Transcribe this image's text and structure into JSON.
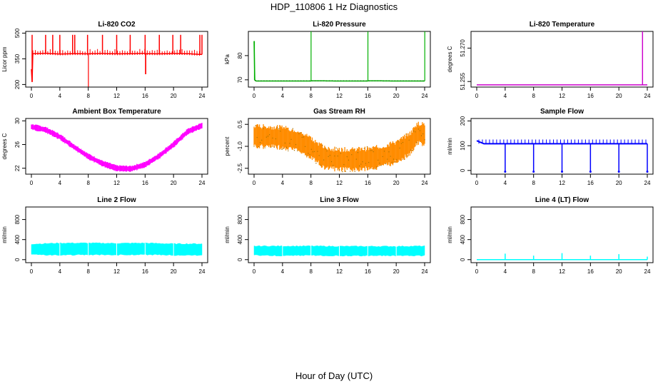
{
  "figure": {
    "title": "HDP_110806  1 Hz Diagnostics",
    "xlabel": "Hour of Day (UTC)"
  },
  "chart_data": [
    {
      "type": "line",
      "title": "Li-820 CO2",
      "ylabel": "Licor ppm",
      "color": "#ff0000",
      "xlim": [
        0,
        24
      ],
      "ylim": [
        185,
        510
      ],
      "yticks": [
        "200",
        "350",
        "500"
      ],
      "ytick_values": [
        200,
        350,
        500
      ],
      "xticks": [
        "0",
        "4",
        "8",
        "12",
        "16",
        "20",
        "24"
      ],
      "series": [
        {
          "name": "CO2",
          "x": [
            0,
            0.1,
            0.2,
            2,
            4,
            6,
            8,
            8.02,
            8.1,
            10,
            12,
            14,
            16,
            16.05,
            16.1,
            18,
            20,
            22,
            24
          ],
          "y": [
            290,
            215,
            380,
            382,
            378,
            380,
            379,
            187,
            380,
            381,
            379,
            380,
            382,
            260,
            380,
            379,
            381,
            380,
            375
          ]
        }
      ],
      "spikes_x": [
        0.1,
        2,
        3,
        4,
        5.8,
        6.1,
        7.9,
        10,
        12,
        13.9,
        16,
        18,
        19.9,
        21,
        23.7,
        24
      ],
      "spike_value": 490
    },
    {
      "type": "line",
      "title": "Li-820 Pressure",
      "ylabel": "kPa",
      "color": "#00b000",
      "xlim": [
        0,
        24
      ],
      "ylim": [
        67,
        90
      ],
      "yticks": [
        "70",
        "80"
      ],
      "ytick_values": [
        70,
        80
      ],
      "xticks": [
        "0",
        "4",
        "8",
        "12",
        "16",
        "20",
        "24"
      ],
      "series": [
        {
          "name": "Pressure",
          "x": [
            0,
            0.05,
            0.3,
            4,
            8,
            8.02,
            8.1,
            12,
            16,
            16.02,
            16.1,
            20,
            24,
            24.02
          ],
          "y": [
            86,
            70,
            69.5,
            69.5,
            69.5,
            90,
            69.6,
            69.5,
            69.5,
            90,
            69.6,
            69.5,
            69.5,
            90
          ]
        }
      ]
    },
    {
      "type": "line",
      "title": "Li-820 Temperature",
      "ylabel": "degrees C",
      "color": "#cc00cc",
      "xlim": [
        0,
        24
      ],
      "ylim": [
        51.2525,
        51.2775
      ],
      "yticks": [
        "51.255",
        "51.270"
      ],
      "ytick_values": [
        51.255,
        51.27
      ],
      "xticks": [
        "0",
        "4",
        "8",
        "12",
        "16",
        "20",
        "24"
      ],
      "series": [
        {
          "name": "Temperature",
          "x": [
            0,
            23.3,
            23.32,
            23.34,
            24
          ],
          "y": [
            51.2535,
            51.2535,
            51.2775,
            51.2535,
            51.2535
          ]
        }
      ]
    },
    {
      "type": "line",
      "title": "Ambient Box Temperature",
      "ylabel": "degrees C",
      "color": "#ff00ff",
      "xlim": [
        0,
        24
      ],
      "ylim": [
        21,
        30.4
      ],
      "yticks": [
        "22",
        "26",
        "30"
      ],
      "ytick_values": [
        22,
        26,
        30
      ],
      "xticks": [
        "0",
        "4",
        "8",
        "12",
        "16",
        "20",
        "24"
      ],
      "series": [
        {
          "name": "Box Temp",
          "x": [
            0,
            2,
            4,
            6,
            8,
            10,
            12,
            14,
            16,
            18,
            20,
            22,
            24
          ],
          "y": [
            29.0,
            28.5,
            27.3,
            25.6,
            24.0,
            22.8,
            22.0,
            21.9,
            22.6,
            24.1,
            26.0,
            28.2,
            29.2
          ]
        }
      ],
      "band": 0.55
    },
    {
      "type": "line",
      "title": "Gas Stream RH",
      "ylabel": "percent",
      "color": "#ff8c00",
      "color2": "#a07000",
      "xlim": [
        0,
        24
      ],
      "ylim": [
        -2.9,
        0.9
      ],
      "yticks": [
        "-2.5",
        "-1.0",
        "0.5"
      ],
      "ytick_values": [
        -2.5,
        -1.0,
        0.5
      ],
      "xticks": [
        "0",
        "4",
        "8",
        "12",
        "16",
        "20",
        "24"
      ],
      "series": [
        {
          "name": "RH",
          "x": [
            0,
            2,
            4,
            6,
            8,
            10,
            12,
            14,
            16,
            18,
            20,
            22,
            23,
            24
          ],
          "y": [
            -0.3,
            -0.35,
            -0.4,
            -0.6,
            -1.1,
            -1.8,
            -1.9,
            -1.9,
            -1.85,
            -1.7,
            -1.4,
            -0.8,
            -0.1,
            -0.2
          ]
        }
      ],
      "band": 0.85
    },
    {
      "type": "line",
      "title": "Sample Flow",
      "ylabel": "ml/min",
      "color": "#0000ff",
      "xlim": [
        0,
        24
      ],
      "ylim": [
        -15,
        210
      ],
      "yticks": [
        "0",
        "100",
        "200"
      ],
      "ytick_values": [
        0,
        100,
        200
      ],
      "xticks": [
        "0",
        "4",
        "8",
        "12",
        "16",
        "20",
        "24"
      ],
      "series": [
        {
          "name": "Flow",
          "x": [
            0,
            1,
            24
          ],
          "y": [
            120,
            108,
            108
          ]
        }
      ],
      "dips_x": [
        4,
        8,
        12,
        16,
        20,
        24
      ],
      "dip_value": -5
    },
    {
      "type": "area",
      "title": "Line 2 Flow",
      "ylabel": "ml/min",
      "color": "#00ffff",
      "xlim": [
        0,
        24
      ],
      "ylim": [
        -60,
        1050
      ],
      "yticks": [
        "0",
        "400",
        "800"
      ],
      "ytick_values": [
        0,
        400,
        800
      ],
      "xticks": [
        "0",
        "4",
        "8",
        "12",
        "16",
        "20",
        "24"
      ],
      "series": [
        {
          "name": "Line 2",
          "x": [
            0,
            4,
            8,
            12,
            16,
            20,
            24
          ],
          "y_low": [
            100,
            90,
            100,
            95,
            100,
            90,
            90
          ],
          "y_high": [
            310,
            330,
            330,
            325,
            330,
            315,
            315
          ]
        }
      ]
    },
    {
      "type": "area",
      "title": "Line 3 Flow",
      "ylabel": "ml/min",
      "color": "#00ffff",
      "xlim": [
        0,
        24
      ],
      "ylim": [
        -60,
        1050
      ],
      "yticks": [
        "0",
        "400",
        "800"
      ],
      "ytick_values": [
        0,
        400,
        800
      ],
      "xticks": [
        "0",
        "4",
        "8",
        "12",
        "16",
        "20",
        "24"
      ],
      "series": [
        {
          "name": "Line 3",
          "x": [
            0,
            4,
            8,
            12,
            16,
            20,
            24
          ],
          "y_low": [
            90,
            80,
            85,
            80,
            80,
            80,
            80
          ],
          "y_high": [
            270,
            270,
            270,
            265,
            265,
            265,
            270
          ]
        }
      ]
    },
    {
      "type": "line",
      "title": "Line 4 (LT) Flow",
      "ylabel": "ml/min",
      "color": "#00ffff",
      "xlim": [
        0,
        24
      ],
      "ylim": [
        -60,
        1050
      ],
      "yticks": [
        "0",
        "400",
        "800"
      ],
      "ytick_values": [
        0,
        400,
        800
      ],
      "xticks": [
        "0",
        "4",
        "8",
        "12",
        "16",
        "20",
        "24"
      ],
      "series": [
        {
          "name": "Line 4",
          "x": [
            0,
            24
          ],
          "y": [
            0,
            0
          ]
        }
      ],
      "spikes_x": [
        4,
        8,
        12,
        16,
        20,
        24
      ],
      "spike_values": [
        120,
        80,
        130,
        80,
        110,
        60
      ]
    }
  ]
}
